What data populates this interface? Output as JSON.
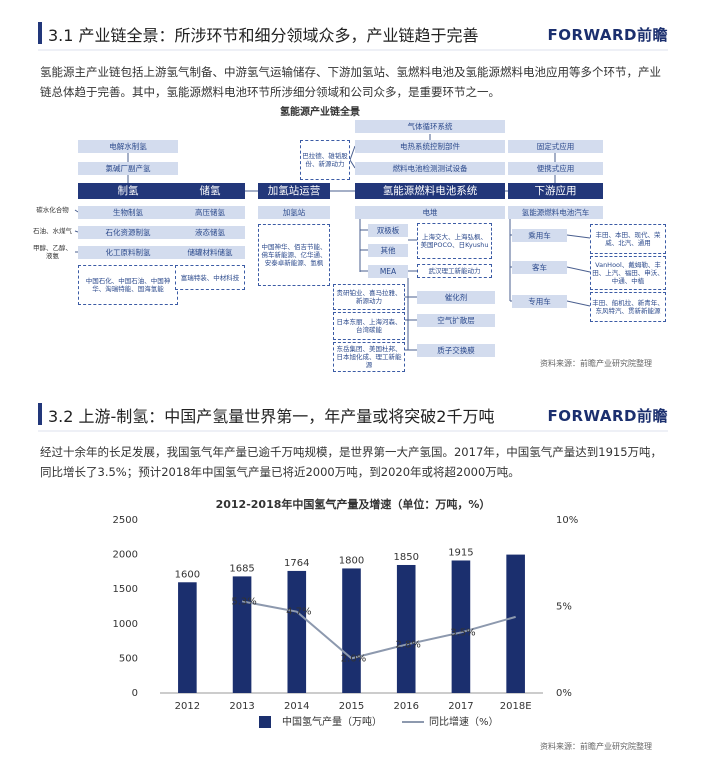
{
  "sections": [
    {
      "title": "3.1 产业链全景：所涉环节和细分领域众多，产业链趋于完善",
      "logo": "FORWARD前瞻",
      "paragraph": "氢能源主产业链包括上游氢气制备、中游氢气运输储存、下游加氢站、氢燃料电池及氢能源燃料电池应用等多个环节，产业链总体趋于完善。其中，氢能源燃料电池环节所涉细分领域和公司众多，是重要环节之一。",
      "source": "资料来源：前瞻产业研究院整理"
    },
    {
      "title": "3.2 上游-制氢：中国产氢量世界第一，年产量或将突破2千万吨",
      "logo": "FORWARD前瞻",
      "paragraph": "经过十余年的长足发展，我国氢气年产量已逾千万吨规模，是世界第一大产氢国。2017年，中国氢气产量达到1915万吨，同比增长了3.5%；预计2018年中国氢气产量已将近2000万吨，到2020年或将超2000万吨。",
      "source": "资料来源：前瞻产业研究院整理"
    }
  ],
  "diagram": {
    "title": "氢能源产业链全景",
    "nodes": [
      "电解水制氢",
      "氯碱厂副产氢",
      "制氢",
      "生物制氢",
      "石化资源制氢",
      "化工原料制氢",
      "中国石化、中国石油、中国神华、淘瑞特能、国海氢能",
      "碳水化合物",
      "石油、水煤气",
      "甲醇、乙醇、液氨",
      "储氢",
      "高压储氢",
      "液态储氢",
      "储罐材料储氢",
      "富瑞特装、中材科技",
      "加氢站运营",
      "加氢站",
      "中国神华、佰吉节能、佛车新能源、亿华通、安泰卓新能源、氢枫",
      "巴拉德、雄韬股份、新源动力",
      "气体循环系统",
      "电热系统控制部件",
      "燃料电池检测测试设备",
      "氢能源燃料电池系统",
      "电堆",
      "双极板",
      "其他",
      "MEA",
      "上海交大、上海弘枫、美国POCO、日Kyushu",
      "武汉理工新能动力",
      "贵研铂业、喜马拉雅、新源动力",
      "催化剂",
      "日本东丽、上海河森、台湾碳能",
      "空气扩散层",
      "东岳集团、美国杜邦、日本旭化成、理工新能源",
      "质子交换膜",
      "固定式应用",
      "便携式应用",
      "下游应用",
      "氢能源燃料电池汽车",
      "乘用车",
      "客车",
      "专用车",
      "丰田、本田、现代、荣威、北汽、通用",
      "VanHool、戴姆勒、丰田、上汽、福田、申沃、中通、中植",
      "丰田、船机拉、新青年、东风特汽、贯新新能源"
    ]
  },
  "chart_data": {
    "type": "bar",
    "title": "2012-2018年中国氢气产量及增速（单位：万吨，%）",
    "categories": [
      "2012",
      "2013",
      "2014",
      "2015",
      "2016",
      "2017",
      "2018E"
    ],
    "series": [
      {
        "name": "中国氢气产量（万吨）",
        "color": "#1b2f6e",
        "values": [
          1600,
          1685,
          1764,
          1800,
          1850,
          1915,
          2000
        ],
        "value_labels": [
          "1600",
          "1685",
          "1764",
          "1800",
          "1850",
          "1915",
          null
        ]
      },
      {
        "name": "同比增速（%）",
        "type": "line",
        "axis": "y2",
        "color": "#8d99ae",
        "values": [
          null,
          5.3,
          4.7,
          2.0,
          2.8,
          3.5,
          4.4
        ],
        "value_labels": [
          null,
          "5.3%",
          "4.7%",
          "2.0%",
          "2.8%",
          "3.5%",
          null
        ]
      }
    ],
    "ylim": [
      0,
      2500
    ],
    "yticks": [
      0,
      500,
      1000,
      1500,
      2000,
      2500
    ],
    "y2lim": [
      0,
      10
    ],
    "y2ticks": [
      {
        "value": 0,
        "label": "0%"
      },
      {
        "value": 5,
        "label": "5%"
      },
      {
        "value": 10,
        "label": "10%"
      }
    ],
    "grid": false
  }
}
